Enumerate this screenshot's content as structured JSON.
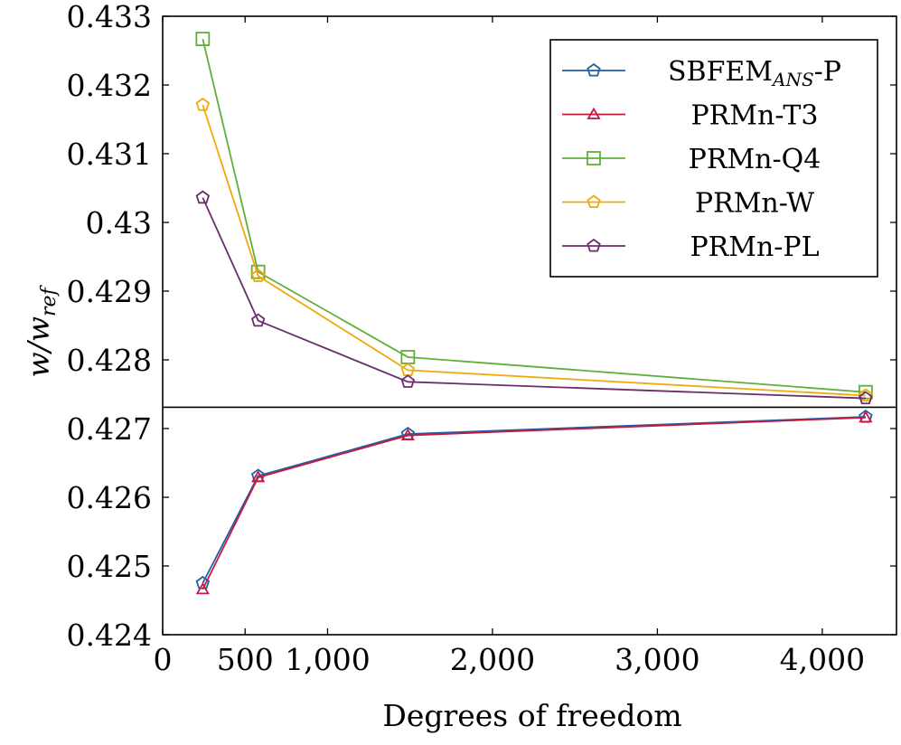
{
  "chart_data": {
    "type": "line",
    "xlabel": "Degrees of freedom",
    "ylabel": "w/w_ref",
    "xlim": [
      0,
      4450
    ],
    "ylim": [
      0.424,
      0.433
    ],
    "x_ticks": [
      0,
      500,
      1000,
      2000,
      3000,
      4000
    ],
    "x_tick_labels": [
      "0",
      "500",
      "1,000",
      "2,000",
      "3,000",
      "4,000"
    ],
    "y_ticks": [
      0.424,
      0.425,
      0.426,
      0.427,
      0.428,
      0.429,
      0.43,
      0.431,
      0.432,
      0.433
    ],
    "y_tick_labels": [
      "0.424",
      "0.425",
      "0.426",
      "0.427",
      "0.428",
      "0.429",
      "0.43",
      "0.431",
      "0.432",
      "0.433"
    ],
    "reference_line": 0.42731,
    "grid": false,
    "legend_position": "top-right",
    "series": [
      {
        "name": "SBFEM_ANS-P",
        "legend_main": "SBFEM",
        "legend_sub": "ANS",
        "legend_suffix": "-P",
        "color": "#1f5fa6",
        "marker": "pentagon",
        "x": [
          243,
          579,
          1487,
          4263
        ],
        "y": [
          0.42475,
          0.42631,
          0.42692,
          0.42717
        ]
      },
      {
        "name": "PRMn-T3",
        "color": "#c8193c",
        "marker": "triangle",
        "x": [
          243,
          579,
          1487,
          4263
        ],
        "y": [
          0.42466,
          0.42629,
          0.4269,
          0.42716
        ]
      },
      {
        "name": "PRMn-Q4",
        "color": "#5faf3a",
        "marker": "square",
        "x": [
          243,
          579,
          1487,
          4263
        ],
        "y": [
          0.43267,
          0.42928,
          0.42804,
          0.42753
        ]
      },
      {
        "name": "PRMn-W",
        "color": "#f0a90a",
        "marker": "pentagon",
        "x": [
          243,
          579,
          1487,
          4263
        ],
        "y": [
          0.43171,
          0.42922,
          0.42785,
          0.42748
        ]
      },
      {
        "name": "PRMn-PL",
        "color": "#6b2d6b",
        "marker": "pentagon",
        "x": [
          243,
          579,
          1487,
          4263
        ],
        "y": [
          0.43036,
          0.42857,
          0.42768,
          0.42744
        ]
      }
    ]
  }
}
